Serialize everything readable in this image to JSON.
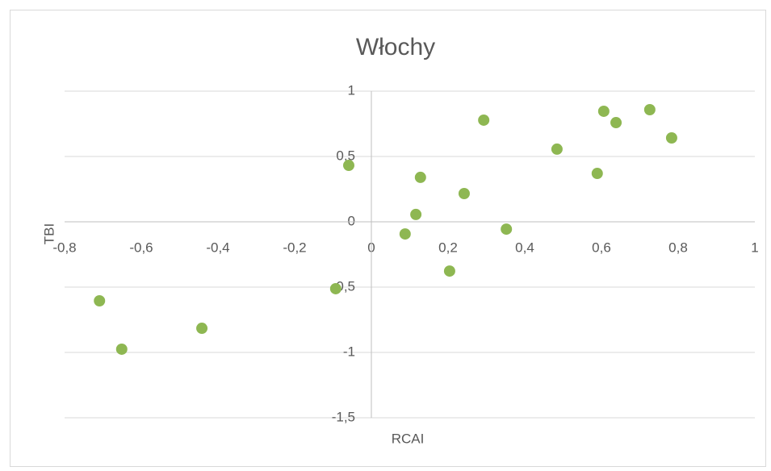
{
  "chart_data": {
    "type": "scatter",
    "title": "Włochy",
    "x_label": "RCAI",
    "y_label": "TBI",
    "x": [
      -0.709,
      -0.651,
      -0.442,
      -0.093,
      -0.059,
      0.088,
      0.116,
      0.128,
      0.204,
      0.242,
      0.293,
      0.352,
      0.484,
      0.589,
      0.606,
      0.638,
      0.726,
      0.783
    ],
    "values": [
      -0.605,
      -0.975,
      -0.815,
      -0.512,
      0.432,
      -0.093,
      0.056,
      0.34,
      -0.377,
      0.216,
      0.778,
      -0.056,
      0.556,
      0.37,
      0.846,
      0.759,
      0.858,
      0.642
    ],
    "color": "#8eb752",
    "xlim": [
      -0.8,
      1
    ],
    "ylim": [
      -1.5,
      1
    ],
    "xticks": [
      {
        "value": -0.8,
        "label": "-0,8"
      },
      {
        "value": -0.6,
        "label": "-0,6"
      },
      {
        "value": -0.4,
        "label": "-0,4"
      },
      {
        "value": -0.2,
        "label": "-0,2"
      },
      0,
      {
        "value": 0.2,
        "label": "0,2"
      },
      {
        "value": 0.4,
        "label": "0,4"
      },
      {
        "value": 0.6,
        "label": "0,6"
      },
      {
        "value": 0.8,
        "label": "0,8"
      },
      1
    ],
    "yticks": [
      {
        "value": -1.5,
        "label": "-1,5"
      },
      -1,
      {
        "value": -0.5,
        "label": "-0,5"
      },
      0,
      {
        "value": 0.5,
        "label": "0,5"
      },
      1
    ],
    "grid": true
  }
}
